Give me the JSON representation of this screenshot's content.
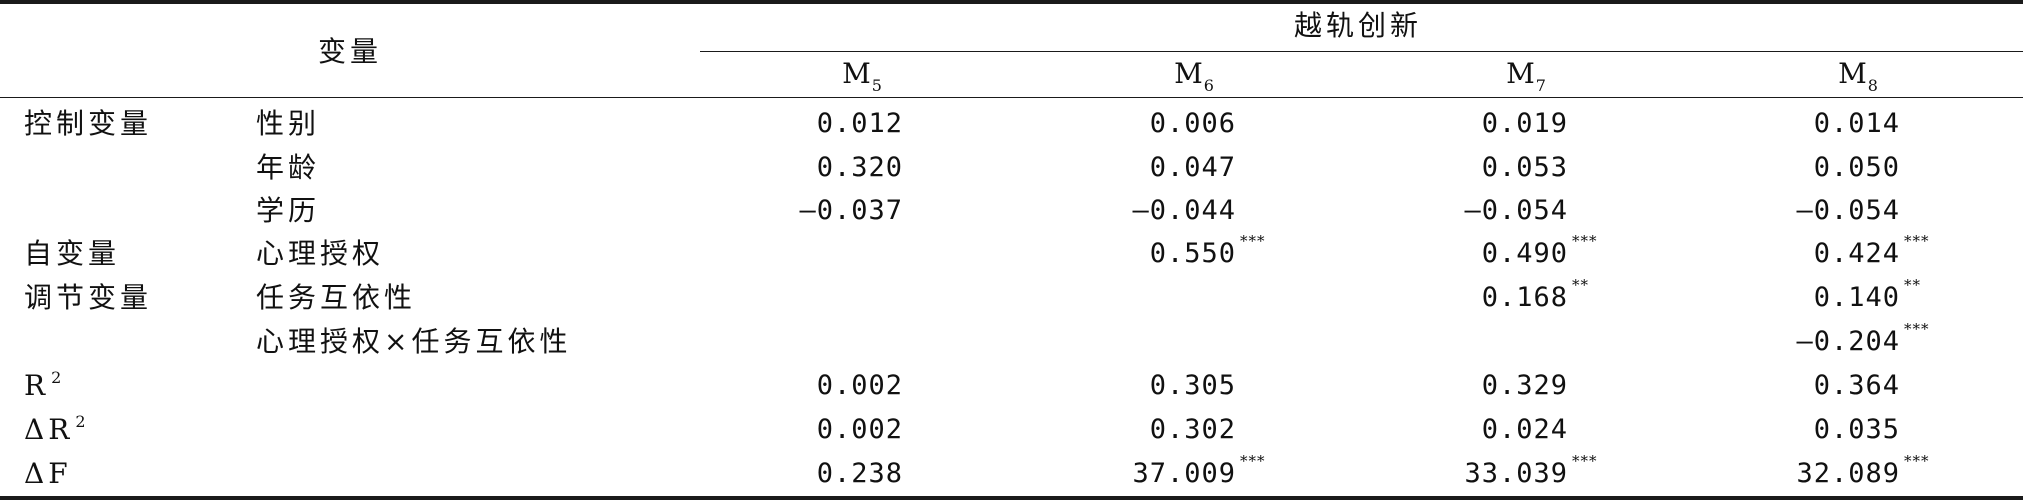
{
  "table": {
    "header": {
      "var_label": "变量",
      "group_label": "越轨创新",
      "models": [
        {
          "base": "M",
          "sub": "5"
        },
        {
          "base": "M",
          "sub": "6"
        },
        {
          "base": "M",
          "sub": "7"
        },
        {
          "base": "M",
          "sub": "8"
        }
      ]
    },
    "rows": [
      {
        "cat": "控制变量",
        "var": "性别",
        "vals": [
          {
            "v": "0.012",
            "s": ""
          },
          {
            "v": "0.006",
            "s": ""
          },
          {
            "v": "0.019",
            "s": ""
          },
          {
            "v": "0.014",
            "s": ""
          }
        ]
      },
      {
        "cat": "",
        "var": "年龄",
        "vals": [
          {
            "v": "0.320",
            "s": ""
          },
          {
            "v": "0.047",
            "s": ""
          },
          {
            "v": "0.053",
            "s": ""
          },
          {
            "v": "0.050",
            "s": ""
          }
        ]
      },
      {
        "cat": "",
        "var": "学历",
        "vals": [
          {
            "v": "—0.037",
            "s": ""
          },
          {
            "v": "—0.044",
            "s": ""
          },
          {
            "v": "—0.054",
            "s": ""
          },
          {
            "v": "—0.054",
            "s": ""
          }
        ]
      },
      {
        "cat": "自变量",
        "var": "心理授权",
        "vals": [
          {
            "v": "",
            "s": ""
          },
          {
            "v": "0.550",
            "s": "***"
          },
          {
            "v": "0.490",
            "s": "***"
          },
          {
            "v": "0.424",
            "s": "***"
          }
        ]
      },
      {
        "cat": "调节变量",
        "var": "任务互依性",
        "vals": [
          {
            "v": "",
            "s": ""
          },
          {
            "v": "",
            "s": ""
          },
          {
            "v": "0.168",
            "s": "**"
          },
          {
            "v": "0.140",
            "s": "**"
          }
        ]
      },
      {
        "cat": "",
        "var": "心理授权×任务互依性",
        "vals": [
          {
            "v": "",
            "s": ""
          },
          {
            "v": "",
            "s": ""
          },
          {
            "v": "",
            "s": ""
          },
          {
            "v": "—0.204",
            "s": "***"
          }
        ]
      },
      {
        "cat": "R",
        "cat_sup": "2",
        "var": "",
        "vals": [
          {
            "v": "0.002",
            "s": ""
          },
          {
            "v": "0.305",
            "s": ""
          },
          {
            "v": "0.329",
            "s": ""
          },
          {
            "v": "0.364",
            "s": ""
          }
        ]
      },
      {
        "cat": "ΔR",
        "cat_sup": "2",
        "var": "",
        "vals": [
          {
            "v": "0.002",
            "s": ""
          },
          {
            "v": "0.302",
            "s": ""
          },
          {
            "v": "0.024",
            "s": ""
          },
          {
            "v": "0.035",
            "s": ""
          }
        ]
      },
      {
        "cat": "ΔF",
        "var": "",
        "vals": [
          {
            "v": "0.238",
            "s": ""
          },
          {
            "v": "37.009",
            "s": "***"
          },
          {
            "v": "33.039",
            "s": "***"
          },
          {
            "v": "32.089",
            "s": "***"
          }
        ]
      }
    ]
  }
}
